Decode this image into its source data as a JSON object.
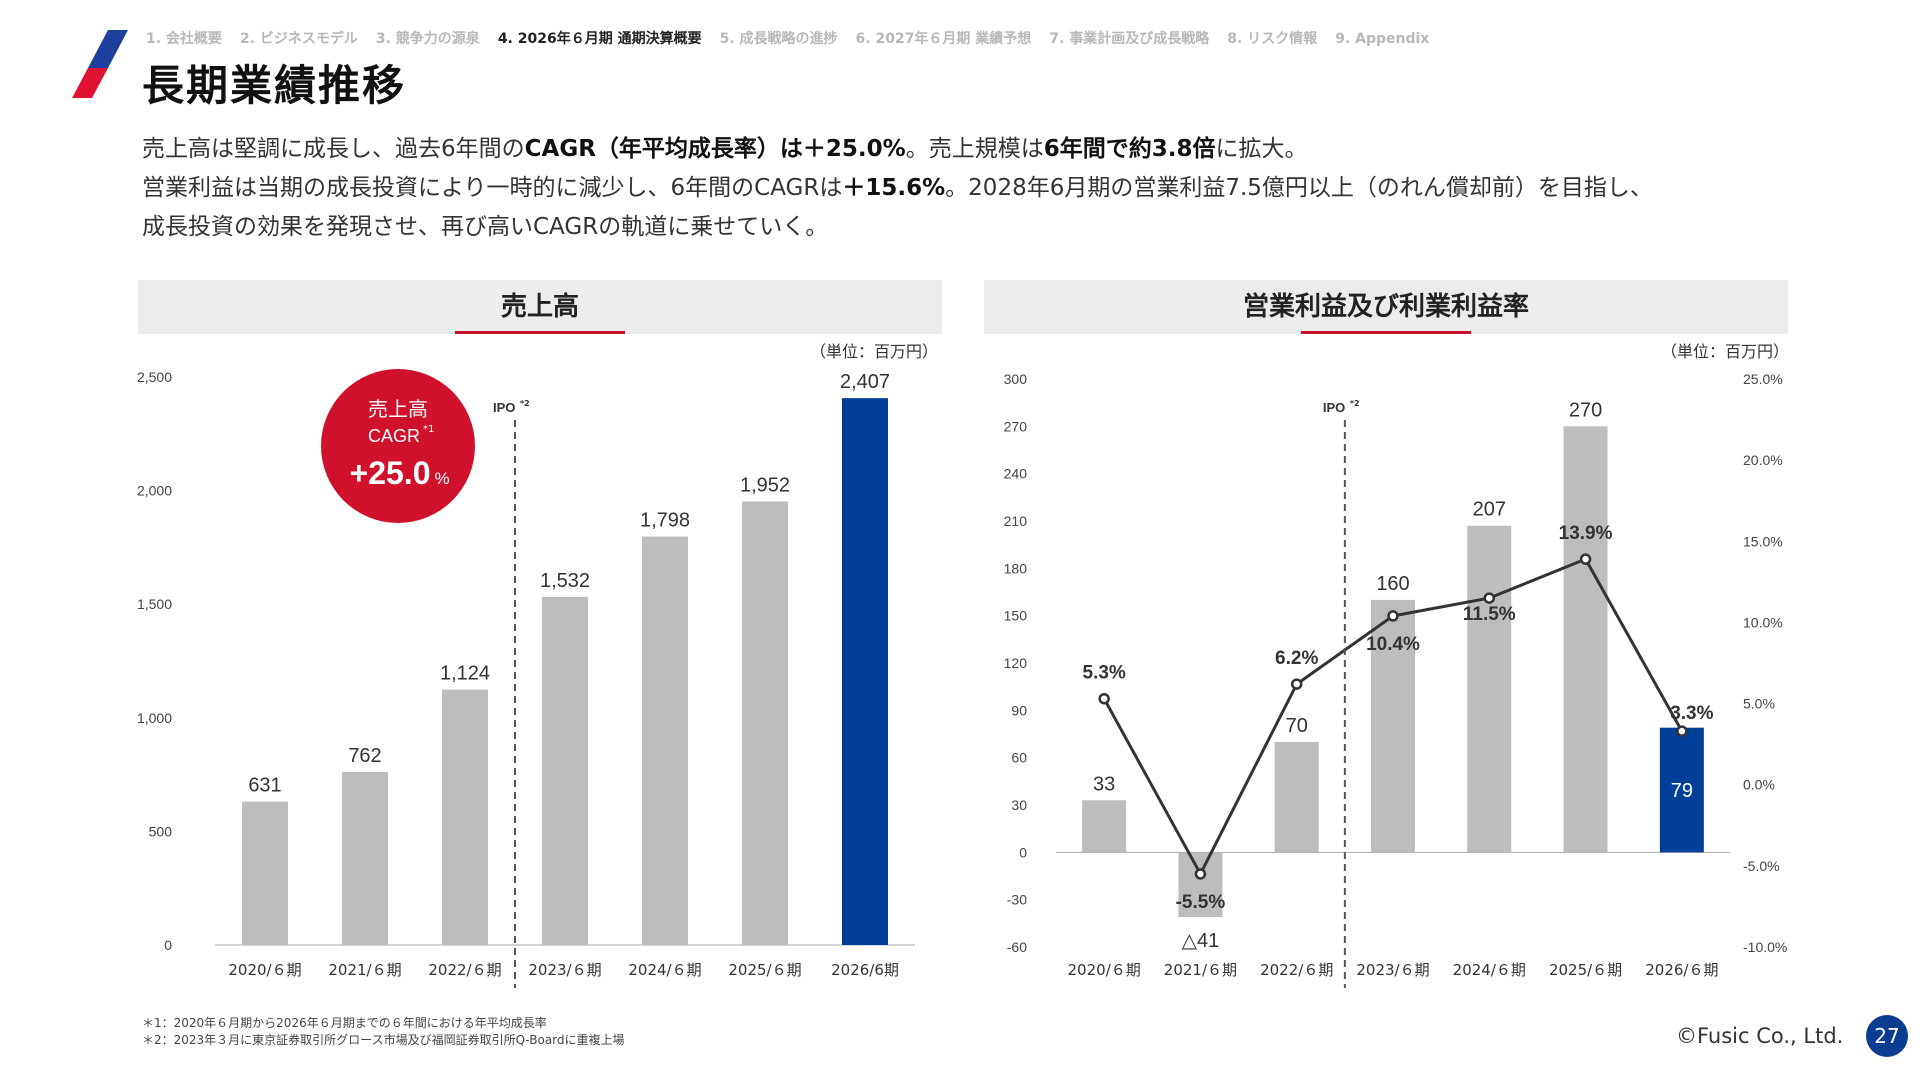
{
  "nav": {
    "items": [
      "1. 会社概要",
      "2. ビジネスモデル",
      "3. 競争力の源泉",
      "4. 2026年６月期 通期決算概要",
      "5. 成長戦略の進捗",
      "6. 2027年６月期 業績予想",
      "7. 事業計画及び成長戦略",
      "8. リスク情報",
      "9. Appendix"
    ],
    "active_index": 3
  },
  "title": "長期業績推移",
  "lead": {
    "line1_a": "売上高は堅調に成長し、過去6年間の",
    "line1_b": "CAGR（年平均成長率）は＋25.0%",
    "line1_c": "。売上規模は",
    "line1_d": "6年間で約3.8倍",
    "line1_e": "に拡大。",
    "line2_a": "営業利益は当期の成長投資により一時的に減少し、6年間のCAGRは",
    "line2_b": "＋15.6%",
    "line2_c": "。2028年6月期の営業利益7.5億円以上（のれん償却前）を目指し、",
    "line3": "成長投資の効果を発現させ、再び高いCAGRの軌道に乗せていく。"
  },
  "panels": {
    "left_title": "売上高",
    "right_title": "営業利益及び利業利益率",
    "unit": "（単位：百万円）"
  },
  "badge": {
    "line1": "売上高",
    "line2": "CAGR",
    "line2_sup": "*1",
    "value": "+25.0",
    "value_unit": "%"
  },
  "ipo_label": "IPO",
  "ipo_sup": "*2",
  "colors": {
    "bar": "#bdbdbd",
    "highlight": "#003f98",
    "accent": "#d0112b",
    "line": "#333333",
    "axis": "#aaaaaa"
  },
  "chart_data": [
    {
      "type": "bar",
      "categories": [
        "2020/６期",
        "2021/６期",
        "2022/６期",
        "2023/６期",
        "2024/６期",
        "2025/６期",
        "2026/6期"
      ],
      "values": [
        631,
        762,
        1124,
        1532,
        1798,
        1952,
        2407
      ],
      "data_labels": [
        "631",
        "762",
        "1,124",
        "1,532",
        "1,798",
        "1,952",
        "2,407"
      ],
      "highlight_index": 6,
      "ylim": [
        0,
        2500
      ],
      "yticks": [
        0,
        500,
        1000,
        1500,
        2000,
        2500
      ],
      "ytick_labels": [
        "0",
        "500",
        "1,000",
        "1,500",
        "2,000",
        "2,500"
      ],
      "ipo_after_index": 2
    },
    {
      "type": "bar",
      "categories": [
        "2020/６期",
        "2021/６期",
        "2022/６期",
        "2023/６期",
        "2024/６期",
        "2025/６期",
        "2026/６期"
      ],
      "series": [
        {
          "type": "bar",
          "values": [
            33,
            -41,
            70,
            160,
            207,
            270,
            79
          ]
        },
        {
          "type": "line",
          "axis": "right",
          "values": [
            5.3,
            -5.5,
            6.2,
            10.4,
            11.5,
            13.9,
            3.3
          ]
        }
      ],
      "bar_labels": [
        "33",
        "△41",
        "70",
        "160",
        "207",
        "270",
        "79"
      ],
      "line_labels": [
        "5.3%",
        "-5.5%",
        "6.2%",
        "10.4%",
        "11.5%",
        "13.9%",
        "3.3%"
      ],
      "highlight_index": 6,
      "ylim": [
        -60,
        300
      ],
      "yticks": [
        -60,
        -30,
        0,
        30,
        60,
        90,
        120,
        150,
        180,
        210,
        240,
        270,
        300
      ],
      "ytick_labels": [
        "-60",
        "-30",
        "0",
        "30",
        "60",
        "90",
        "120",
        "150",
        "180",
        "210",
        "240",
        "270",
        "300"
      ],
      "y2lim": [
        -10,
        25
      ],
      "y2ticks": [
        -10,
        -5,
        0,
        5,
        10,
        15,
        20,
        25
      ],
      "y2tick_labels": [
        "-10.0%",
        "-5.0%",
        "0.0%",
        "5.0%",
        "10.0%",
        "15.0%",
        "20.0%",
        "25.0%"
      ],
      "ipo_after_index": 2
    }
  ],
  "footnotes": [
    "＊1：2020年６月期から2026年６月期までの６年間における年平均成長率",
    "＊2：2023年３月に東京証券取引所グロース市場及び福岡証券取引所Q-Boardに重複上場"
  ],
  "copyright": "©Fusic Co., Ltd.",
  "page_number": "27"
}
